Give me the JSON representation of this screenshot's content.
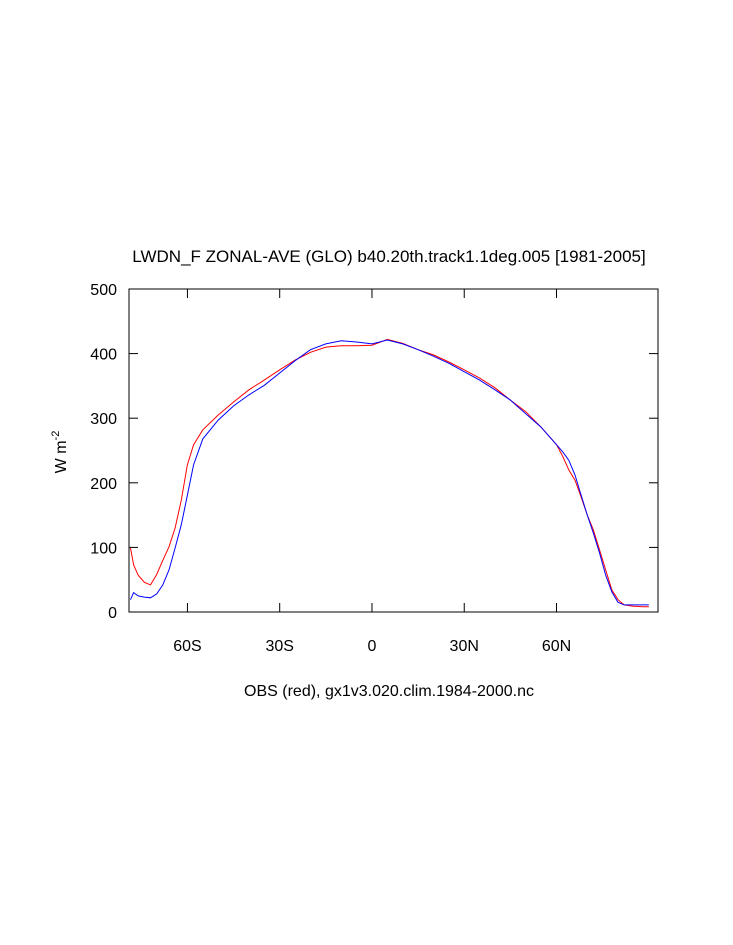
{
  "chart_data": {
    "type": "line",
    "title": "LWDN_F ZONAL-AVE (GLO) b40.20th.track1.1deg.005 [1981-2005]",
    "xlabel": "OBS (red), gx1v3.020.clim.1984-2000.nc",
    "ylabel": "W m",
    "ylabel_superscript": "-2",
    "x": [
      -78.5,
      -77.5,
      -76,
      -74,
      -72,
      -70,
      -68,
      -66,
      -64,
      -62,
      -60,
      -58,
      -55,
      -50,
      -45,
      -40,
      -35,
      -30,
      -25,
      -20,
      -15,
      -10,
      -5,
      0,
      5,
      10,
      15,
      20,
      25,
      30,
      35,
      40,
      45,
      50,
      55,
      60,
      62,
      64,
      66,
      68,
      70,
      72,
      74,
      76,
      78,
      80,
      82,
      85,
      88,
      90
    ],
    "series": [
      {
        "color": "#ff0000",
        "values": [
          99,
          73,
          57,
          46,
          42,
          58,
          80,
          101,
          130,
          173,
          228,
          259,
          282,
          305,
          325,
          344,
          359,
          375,
          390,
          402,
          410,
          412,
          412,
          413,
          422,
          416,
          406,
          398,
          387,
          375,
          362,
          347,
          328,
          310,
          286,
          259,
          241,
          220,
          204,
          178,
          150,
          127,
          96,
          65,
          34,
          19,
          11,
          9,
          8,
          8
        ]
      },
      {
        "color": "#0000ff",
        "values": [
          19,
          30,
          25,
          23,
          22,
          28,
          42,
          65,
          99,
          135,
          181,
          228,
          268,
          297,
          319,
          336,
          351,
          370,
          389,
          406,
          415,
          420,
          418,
          415,
          421,
          415,
          406,
          396,
          385,
          372,
          359,
          344,
          328,
          307,
          286,
          259,
          248,
          235,
          212,
          181,
          150,
          122,
          91,
          57,
          31,
          15,
          11,
          11,
          11,
          11
        ]
      }
    ],
    "xlim": [
      -79,
      93
    ],
    "xticks": [
      {
        "value": -60,
        "label": "60S"
      },
      {
        "value": -30,
        "label": "30S"
      },
      0,
      {
        "value": 30,
        "label": "30N"
      },
      {
        "value": 60,
        "label": "60N"
      }
    ],
    "ylim": [
      0,
      500
    ],
    "yticks": [
      0,
      100,
      200,
      300,
      400,
      500
    ],
    "grid": false
  }
}
